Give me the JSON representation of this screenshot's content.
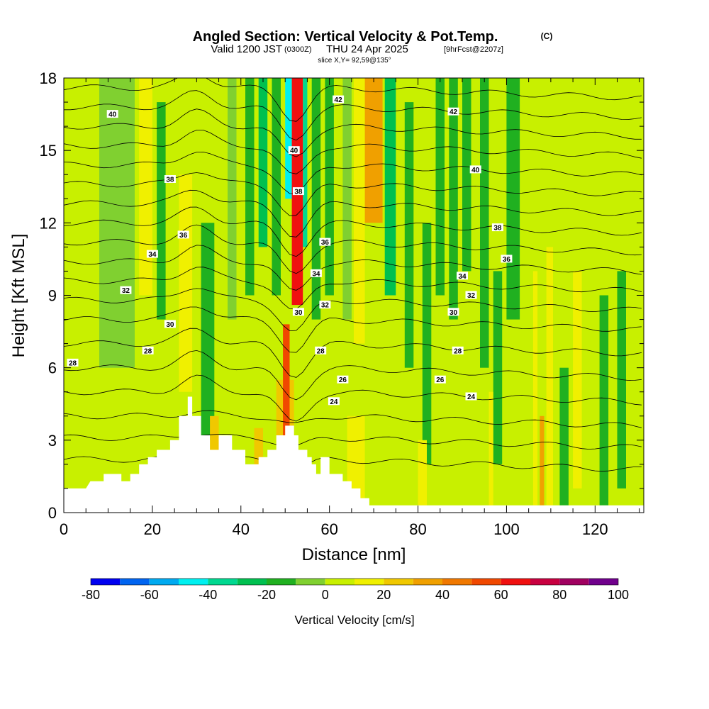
{
  "chart_data": {
    "type": "heatmap",
    "title": "Angled Section: Vertical Velocity & Pot.Temp.",
    "title_suffix": "(C)",
    "subtitle": {
      "valid_prefix": "Valid 1200 JST",
      "utc": "(0300Z)",
      "date": "THU 24 Apr 2025",
      "forecast": "[9hrFcst@2207z]"
    },
    "slice_label": "slice X,Y= 92,59@135°",
    "xlabel": "Distance [nm]",
    "ylabel": "Height [Kft MSL]",
    "xlim": [
      0,
      131
    ],
    "ylim": [
      0,
      18
    ],
    "x_ticks": [
      0,
      20,
      40,
      60,
      80,
      100,
      120
    ],
    "y_ticks": [
      0,
      3,
      6,
      9,
      12,
      15,
      18
    ],
    "colorbar": {
      "label": "Vertical Velocity [cm/s]",
      "min": -80,
      "max": 100,
      "step": 10,
      "tick_values": [
        -80,
        -60,
        -40,
        -20,
        0,
        20,
        40,
        60,
        80,
        100
      ],
      "colors": [
        "#0000f0",
        "#0064f0",
        "#00aaf0",
        "#00f0f0",
        "#00d890",
        "#00c050",
        "#20b020",
        "#80d030",
        "#c8f000",
        "#f0f000",
        "#f0c800",
        "#f0a000",
        "#f07800",
        "#f04800",
        "#f01010",
        "#c80040",
        "#a00060",
        "#70008c"
      ]
    },
    "pot_temp_contour_labels": [
      {
        "value": "40",
        "x": 11,
        "z": 16.5
      },
      {
        "value": "42",
        "x": 62,
        "z": 17.1
      },
      {
        "value": "42",
        "x": 88,
        "z": 16.6
      },
      {
        "value": "40",
        "x": 52,
        "z": 15.0
      },
      {
        "value": "40",
        "x": 93,
        "z": 14.2
      },
      {
        "value": "38",
        "x": 24,
        "z": 13.8
      },
      {
        "value": "38",
        "x": 53,
        "z": 13.3
      },
      {
        "value": "38",
        "x": 98,
        "z": 11.8
      },
      {
        "value": "36",
        "x": 27,
        "z": 11.5
      },
      {
        "value": "36",
        "x": 59,
        "z": 11.2
      },
      {
        "value": "36",
        "x": 100,
        "z": 10.5
      },
      {
        "value": "34",
        "x": 20,
        "z": 10.7
      },
      {
        "value": "34",
        "x": 57,
        "z": 9.9
      },
      {
        "value": "34",
        "x": 90,
        "z": 9.8
      },
      {
        "value": "32",
        "x": 14,
        "z": 9.2
      },
      {
        "value": "32",
        "x": 59,
        "z": 8.6
      },
      {
        "value": "32",
        "x": 92,
        "z": 9.0
      },
      {
        "value": "30",
        "x": 24,
        "z": 7.8
      },
      {
        "value": "30",
        "x": 53,
        "z": 8.3
      },
      {
        "value": "30",
        "x": 88,
        "z": 8.3
      },
      {
        "value": "28",
        "x": 2,
        "z": 6.2
      },
      {
        "value": "28",
        "x": 19,
        "z": 6.7
      },
      {
        "value": "28",
        "x": 58,
        "z": 6.7
      },
      {
        "value": "28",
        "x": 89,
        "z": 6.7
      },
      {
        "value": "26",
        "x": 63,
        "z": 5.5
      },
      {
        "value": "26",
        "x": 85,
        "z": 5.5
      },
      {
        "value": "24",
        "x": 61,
        "z": 4.6
      },
      {
        "value": "24",
        "x": 92,
        "z": 4.8
      }
    ]
  }
}
